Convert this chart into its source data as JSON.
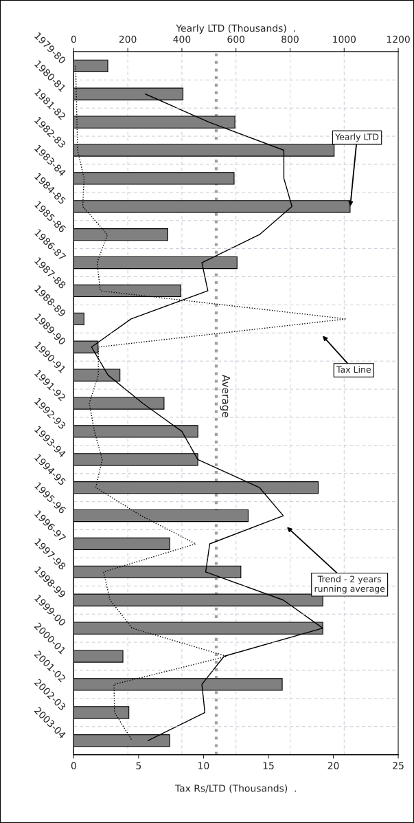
{
  "chart_data": {
    "type": "bar",
    "orientation": "horizontal",
    "categories": [
      "1979-80",
      "1980-81",
      "1981-82",
      "1982-83",
      "1983-84",
      "1984-85",
      "1985-86",
      "1986-87",
      "1987-88",
      "1988-89",
      "1989-90",
      "1990-91",
      "1991-92",
      "1992-93",
      "1993-94",
      "1994-95",
      "1995-96",
      "1996-97",
      "1997-98",
      "1998-99",
      "1999-00",
      "2000-01",
      "2001-02",
      "2002-03",
      "2003-04"
    ],
    "series": [
      {
        "axis": "x2",
        "color": "#808080",
        "values": [
          126,
          404,
          596,
          963,
          593,
          1022,
          348,
          604,
          396,
          38,
          90,
          171,
          334,
          459,
          459,
          904,
          645,
          355,
          618,
          921,
          921,
          182,
          771,
          204,
          355
        ]
      },
      {
        "type": "line",
        "color": "#000000",
        "line_style": "dotted",
        "values": [
          0.15,
          0.2,
          0.25,
          0.3,
          0.8,
          0.7,
          2.6,
          1.8,
          2.05,
          21.0,
          1.9,
          1.9,
          1.2,
          1.6,
          2.2,
          1.7,
          5.2,
          9.4,
          2.3,
          2.8,
          4.5,
          11.8,
          3.1,
          3.15,
          4.5
        ]
      },
      {
        "type": "line",
        "axis": "x2",
        "color": "#000000",
        "line_style": "solid",
        "values": [
          null,
          265,
          500,
          777,
          777,
          807,
          687,
          474,
          496,
          212,
          66,
          127,
          255,
          400,
          459,
          687,
          775,
          503,
          488,
          775,
          921,
          556,
          474,
          485,
          275
        ]
      }
    ],
    "xlabel": "Tax Rs/LTD (Thousands)  .",
    "xlim": [
      0,
      25
    ],
    "xticks": [
      0,
      5,
      10,
      15,
      20,
      25
    ],
    "x2label": "Yearly LTD (Thousands)  .",
    "x2lim": [
      0,
      1200
    ],
    "x2ticks": [
      0,
      200,
      400,
      600,
      800,
      1000,
      1200
    ],
    "grid": true,
    "ref_lines": [
      {
        "axis": "x2",
        "value": 527,
        "label": "Average",
        "color": "#a0a0a0",
        "line_style": "dotted"
      }
    ],
    "annotations": [
      {
        "text": "Yearly LTD",
        "x": 21.3,
        "y": "1984-85"
      },
      "Tax Line",
      "Trend - 2 years\nrunning average"
    ]
  }
}
